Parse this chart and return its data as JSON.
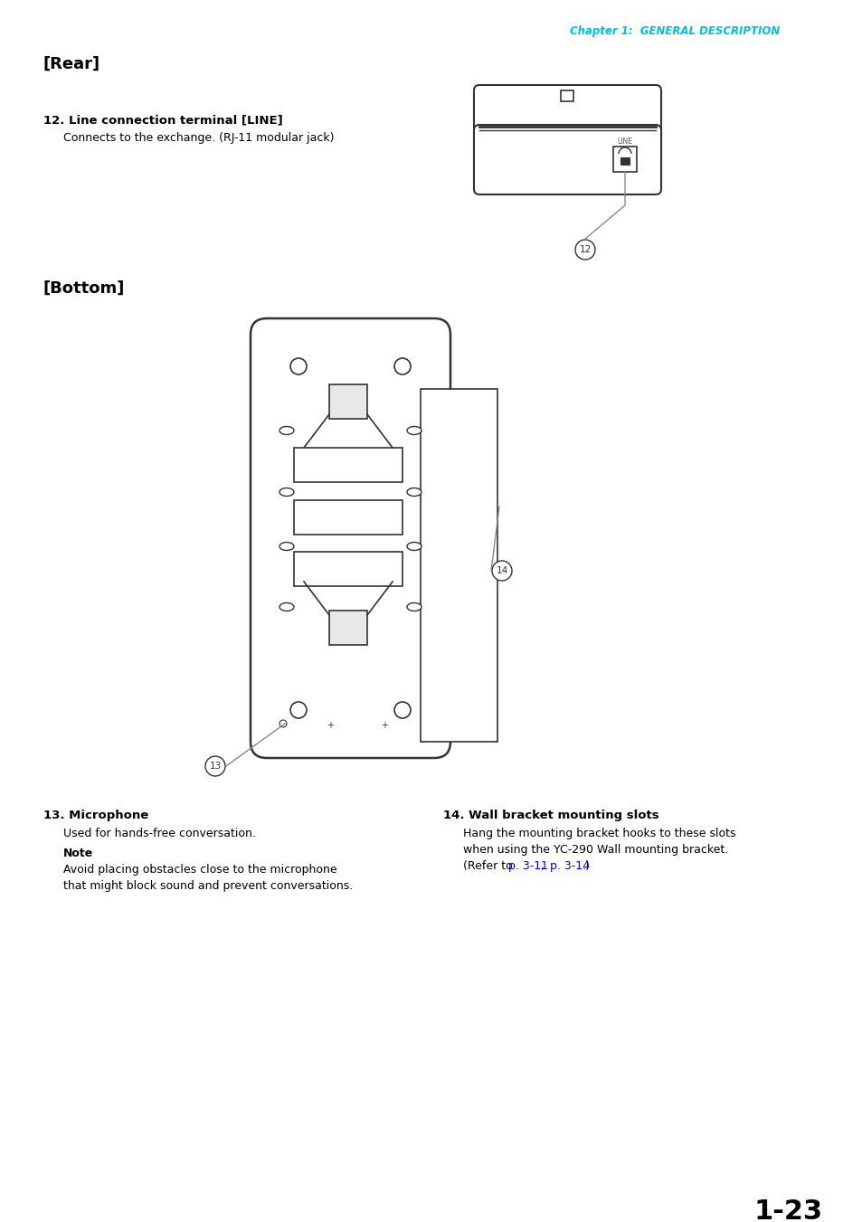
{
  "page_header": "Chapter 1:  GENERAL DESCRIPTION",
  "header_color": "#00BFDF",
  "section_rear": "[Rear]",
  "section_bottom": "[Bottom]",
  "item12_title": "12. Line connection terminal [LINE]",
  "item12_desc": "Connects to the exchange. (RJ-11 modular jack)",
  "item13_title": "13. Microphone",
  "item13_desc": "Used for hands-free conversation.",
  "item13_note_title": "Note",
  "item13_note_line1": "Avoid placing obstacles close to the microphone",
  "item13_note_line2": "that might block sound and prevent conversations.",
  "item14_title": "14. Wall bracket mounting slots",
  "item14_desc_line1": "Hang the mounting bracket hooks to these slots",
  "item14_desc_line2": "when using the YC-290 Wall mounting bracket.",
  "item14_desc_line3_pre": "(Refer to ",
  "item14_link1": "p. 3-11",
  "item14_middle": ", ",
  "item14_link2": "p. 3-14",
  "item14_post": ".)",
  "page_number": "1-23",
  "bg_color": "#ffffff",
  "text_color": "#000000",
  "link_color": "#0000EE",
  "draw_color": "#333333",
  "line_color": "#888888"
}
